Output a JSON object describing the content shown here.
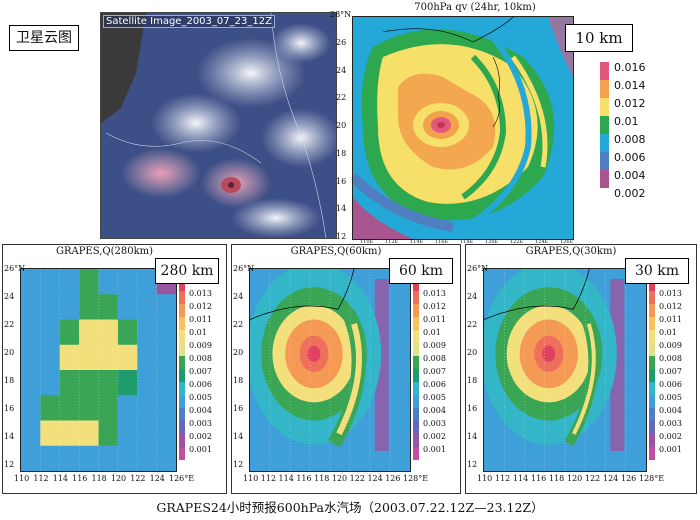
{
  "caption": "GRAPES24小时预报600hPa水汽场（2003.07.22.12Z—23.12Z）",
  "satellite": {
    "box_label": "卫星云图",
    "image_title": "Satellite Image_2003_07_23_12Z"
  },
  "top_right": {
    "title": "700hPa qv (24hr, 10km)",
    "box_label": "10 km",
    "colorbar": [
      "0.016",
      "0.014",
      "0.012",
      "0.01",
      "0.008",
      "0.006",
      "0.004",
      "0.002"
    ],
    "colorbar_colors": [
      "#e2577f",
      "#f3a14c",
      "#f6e06a",
      "#2ea84e",
      "#24a8d8",
      "#4f7fc0",
      "#a9558f"
    ],
    "y_ticks": [
      "28°N",
      "26",
      "24",
      "22",
      "20",
      "18",
      "16",
      "14",
      "12"
    ],
    "x_ticks": [
      "110E",
      "112E",
      "114E",
      "116E",
      "118E",
      "120E",
      "122E",
      "124E",
      "126E"
    ]
  },
  "panels": [
    {
      "title": "GRAPES,Q(280km)",
      "box_label": "280 km",
      "y_ticks": [
        "26°N",
        "24",
        "22",
        "20",
        "18",
        "16",
        "14",
        "12"
      ],
      "x_ticks": [
        "110",
        "112",
        "114",
        "116",
        "118",
        "120",
        "122",
        "124",
        "126°E"
      ]
    },
    {
      "title": "GRAPES,Q(60km)",
      "box_label": "60 km",
      "y_ticks": [
        "26°N",
        "24",
        "22",
        "20",
        "18",
        "16",
        "14",
        "12"
      ],
      "x_ticks": [
        "110",
        "112",
        "114",
        "116",
        "118",
        "120",
        "122",
        "124",
        "126",
        "128°E"
      ]
    },
    {
      "title": "GRAPES,Q(30km)",
      "box_label": "30 km",
      "y_ticks": [
        "26°N",
        "24",
        "22",
        "20",
        "18",
        "16",
        "14",
        "12"
      ],
      "x_ticks": [
        "110",
        "112",
        "114",
        "116",
        "118",
        "120",
        "122",
        "124",
        "126",
        "128°E"
      ]
    }
  ],
  "bottom_colorbar": [
    "0.014",
    "0.013",
    "0.012",
    "0.011",
    "0.01",
    "0.009",
    "0.008",
    "0.007",
    "0.006",
    "0.005",
    "0.004",
    "0.003",
    "0.002",
    "0.001"
  ],
  "bottom_colorbar_colors": [
    "#e0415e",
    "#ef6f5d",
    "#f49a55",
    "#f6c25a",
    "#f3e07c",
    "#dfe28a",
    "#3aa655",
    "#1f9c6e",
    "#32b6c8",
    "#3fa0d9",
    "#4d7ec7",
    "#6a67b6",
    "#9a55a2",
    "#c04fa0"
  ],
  "chart_data": [
    {
      "type": "heatmap",
      "title": "700hPa qv (24hr, 10km)",
      "xlabel": "",
      "ylabel": "",
      "xlim": [
        109,
        127
      ],
      "ylim": [
        12,
        28
      ],
      "levels": [
        0.002,
        0.004,
        0.006,
        0.008,
        0.01,
        0.012,
        0.014,
        0.016
      ],
      "max_center": [
        116.5,
        20.5
      ]
    },
    {
      "type": "heatmap",
      "title": "GRAPES,Q(280km)",
      "xlim": [
        110,
        126
      ],
      "ylim": [
        11,
        26
      ],
      "levels": [
        0.001,
        0.002,
        0.003,
        0.004,
        0.005,
        0.006,
        0.007,
        0.008,
        0.009,
        0.01,
        0.011,
        0.012,
        0.013,
        0.014
      ],
      "max_center": [
        117,
        21
      ]
    },
    {
      "type": "heatmap",
      "title": "GRAPES,Q(60km)",
      "xlim": [
        110,
        128
      ],
      "ylim": [
        11,
        26
      ],
      "levels": [
        0.001,
        0.002,
        0.003,
        0.004,
        0.005,
        0.006,
        0.007,
        0.008,
        0.009,
        0.01,
        0.011,
        0.012,
        0.013,
        0.014
      ],
      "max_center": [
        116,
        20
      ]
    },
    {
      "type": "heatmap",
      "title": "GRAPES,Q(30km)",
      "xlim": [
        110,
        128
      ],
      "ylim": [
        11,
        26
      ],
      "levels": [
        0.001,
        0.002,
        0.003,
        0.004,
        0.005,
        0.006,
        0.007,
        0.008,
        0.009,
        0.01,
        0.011,
        0.012,
        0.013,
        0.014
      ],
      "max_center": [
        116,
        20
      ]
    }
  ]
}
